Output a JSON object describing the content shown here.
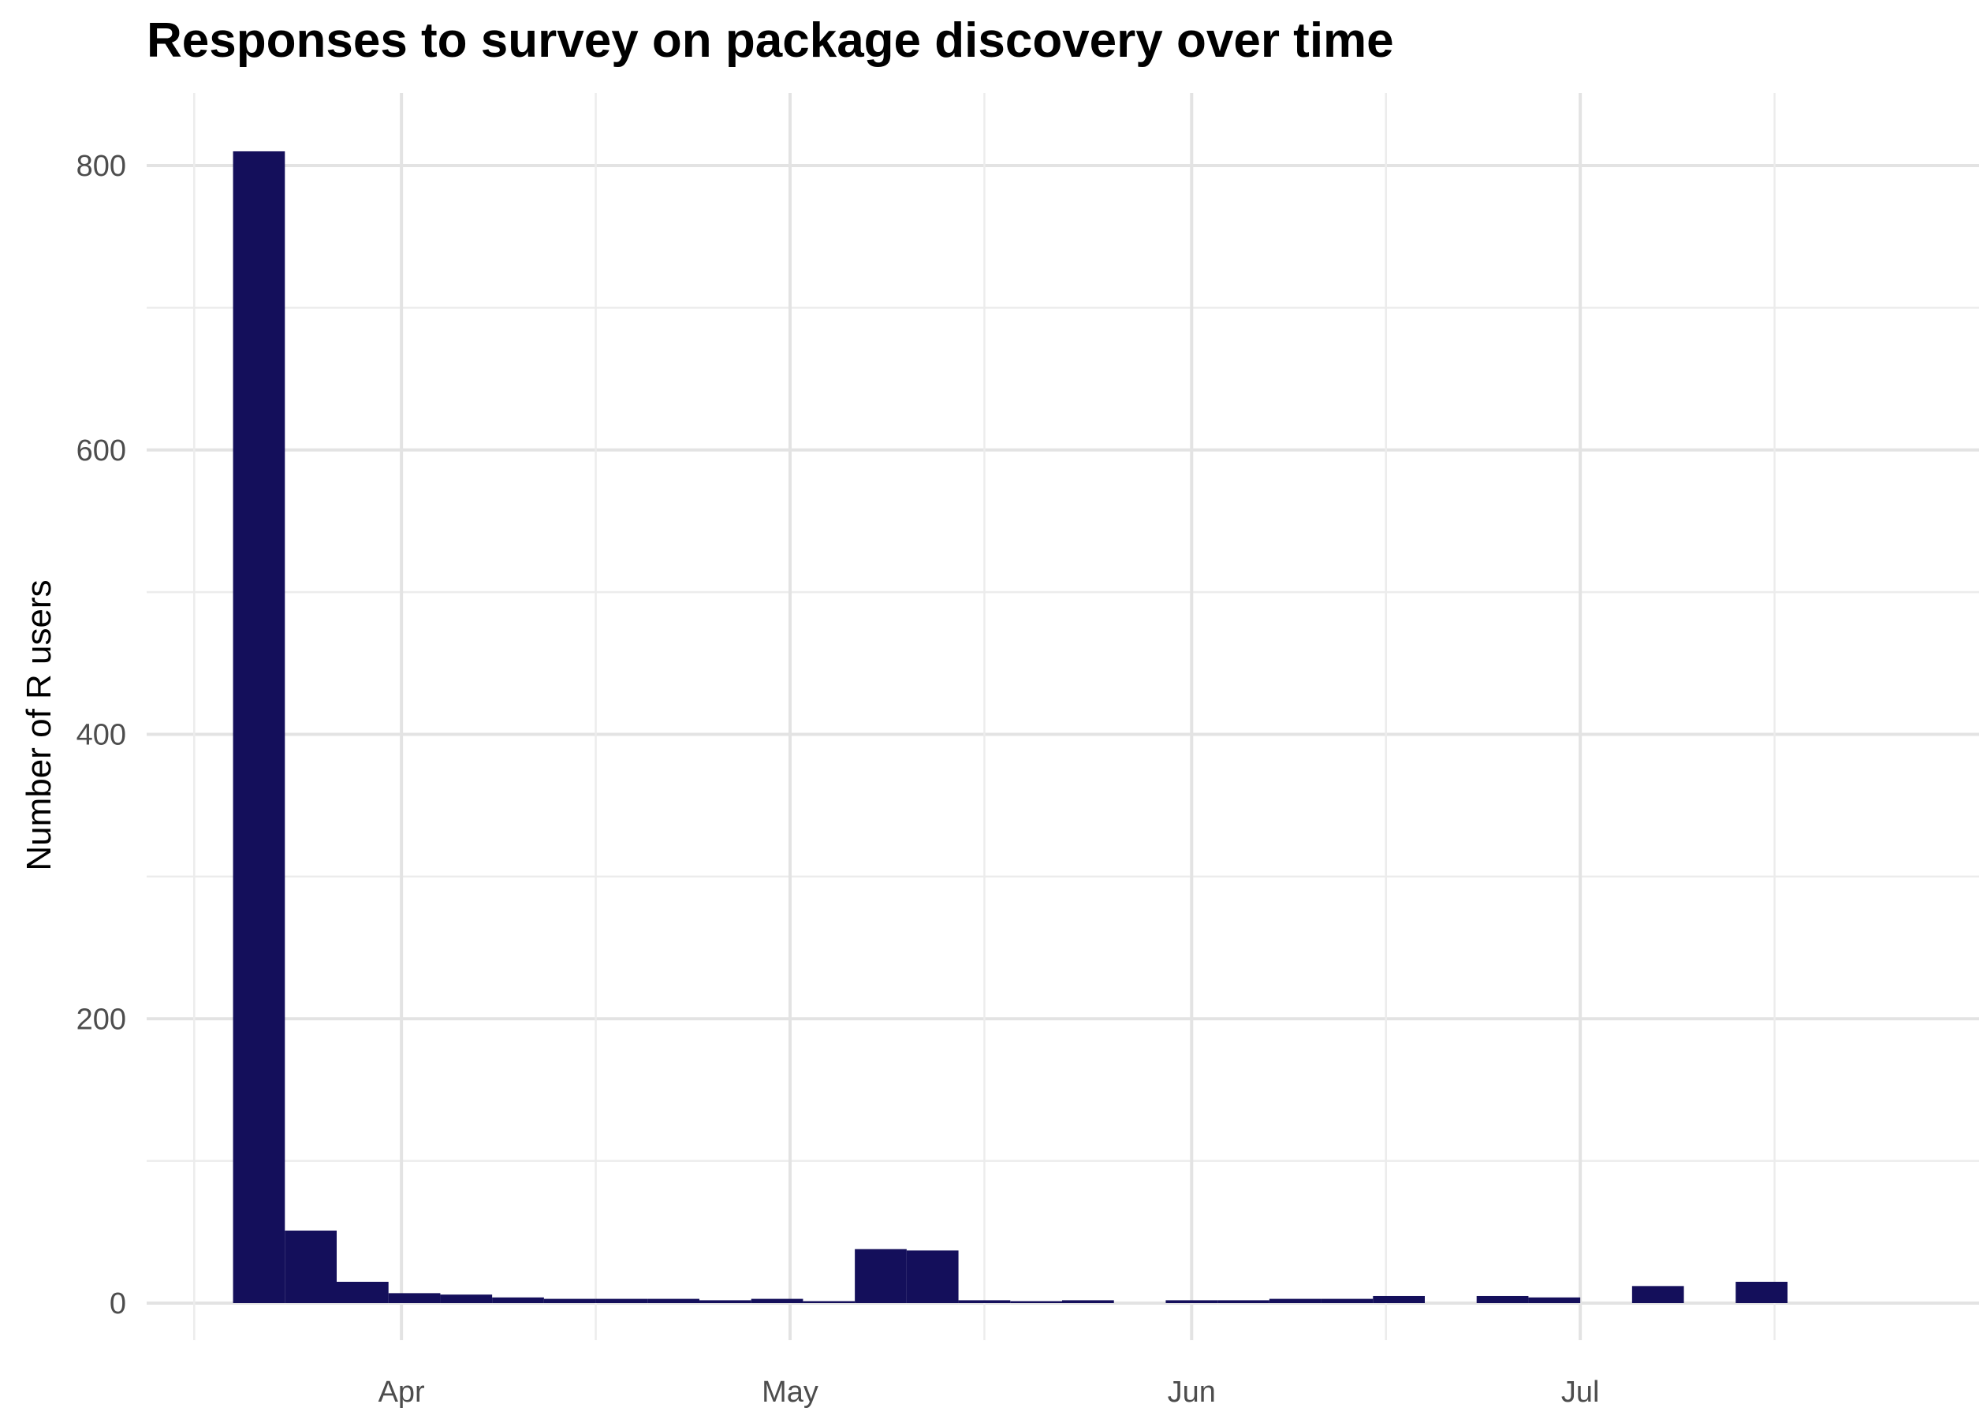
{
  "chart_data": {
    "type": "bar",
    "title": "Responses to survey on package discovery over time",
    "xlabel": "",
    "ylabel": "Number of R users",
    "x_axis": "date",
    "bin_width_days": 4,
    "xlim": [
      "2019-03-20",
      "2019-07-20"
    ],
    "ylim": [
      0,
      840
    ],
    "y_ticks": [
      0,
      200,
      400,
      600,
      800
    ],
    "x_ticks": [
      {
        "date": "2019-04-01",
        "label": "Apr"
      },
      {
        "date": "2019-05-01",
        "label": "May"
      },
      {
        "date": "2019-06-01",
        "label": "Jun"
      },
      {
        "date": "2019-07-01",
        "label": "Jul"
      }
    ],
    "x_minor_ticks": [
      "2019-03-16",
      "2019-04-16",
      "2019-05-16",
      "2019-06-16",
      "2019-07-16"
    ],
    "grid": true,
    "bar_color": "#140f5b",
    "bins": [
      {
        "start": "2019-03-19",
        "value": 810
      },
      {
        "start": "2019-03-23",
        "value": 51
      },
      {
        "start": "2019-03-27",
        "value": 15
      },
      {
        "start": "2019-03-31",
        "value": 7
      },
      {
        "start": "2019-04-04",
        "value": 6
      },
      {
        "start": "2019-04-08",
        "value": 4
      },
      {
        "start": "2019-04-12",
        "value": 3
      },
      {
        "start": "2019-04-16",
        "value": 3
      },
      {
        "start": "2019-04-20",
        "value": 3
      },
      {
        "start": "2019-04-24",
        "value": 2
      },
      {
        "start": "2019-04-28",
        "value": 3
      },
      {
        "start": "2019-05-02",
        "value": 1
      },
      {
        "start": "2019-05-06",
        "value": 38
      },
      {
        "start": "2019-05-10",
        "value": 37
      },
      {
        "start": "2019-05-14",
        "value": 2
      },
      {
        "start": "2019-05-18",
        "value": 1
      },
      {
        "start": "2019-05-22",
        "value": 2
      },
      {
        "start": "2019-05-26",
        "value": 0
      },
      {
        "start": "2019-05-30",
        "value": 2
      },
      {
        "start": "2019-06-03",
        "value": 2
      },
      {
        "start": "2019-06-07",
        "value": 3
      },
      {
        "start": "2019-06-11",
        "value": 3
      },
      {
        "start": "2019-06-15",
        "value": 5
      },
      {
        "start": "2019-06-19",
        "value": 0
      },
      {
        "start": "2019-06-23",
        "value": 5
      },
      {
        "start": "2019-06-27",
        "value": 4
      },
      {
        "start": "2019-07-01",
        "value": 0
      },
      {
        "start": "2019-07-05",
        "value": 12
      },
      {
        "start": "2019-07-09",
        "value": 0
      },
      {
        "start": "2019-07-13",
        "value": 15
      }
    ]
  }
}
